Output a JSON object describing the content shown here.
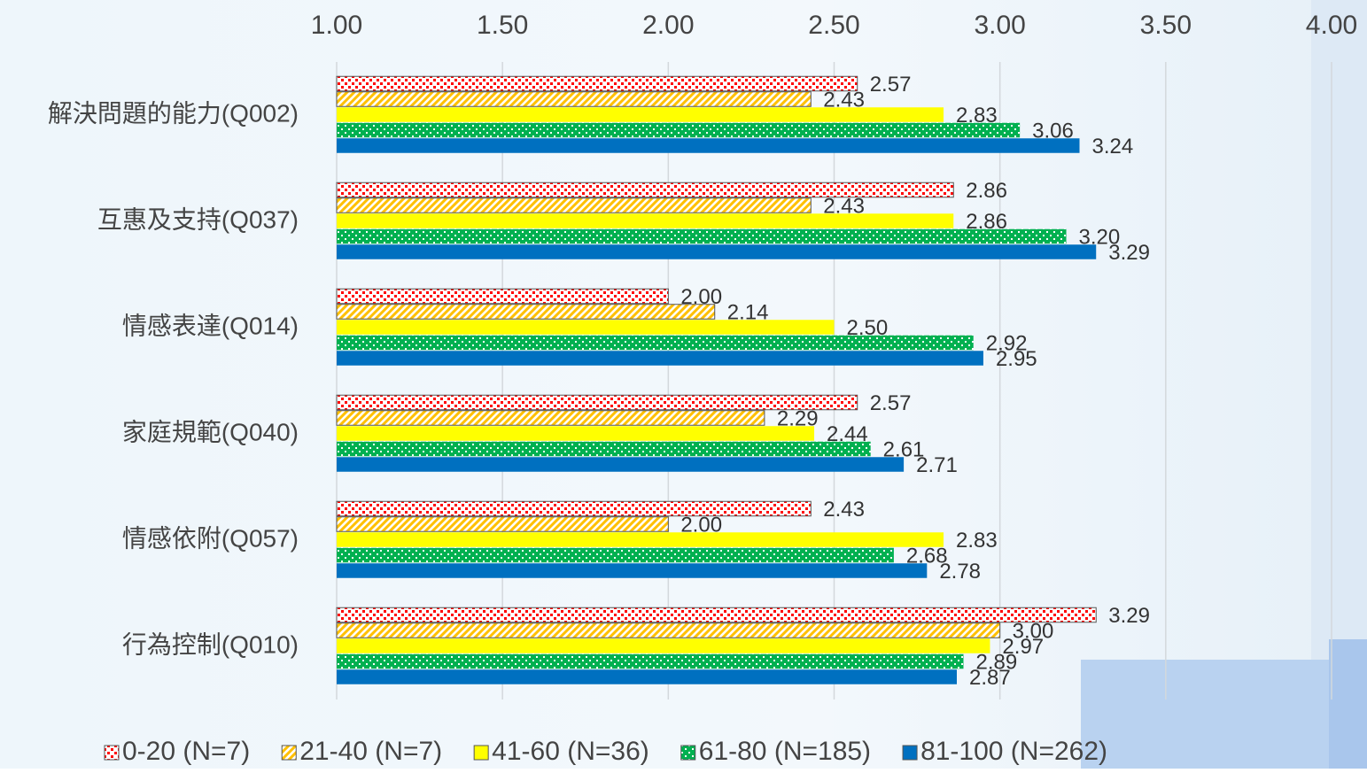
{
  "chart_data": {
    "type": "bar",
    "orientation": "horizontal",
    "categories": [
      "解決問題的能力(Q002)",
      "互惠及支持(Q037)",
      "情感表達(Q014)",
      "家庭規範(Q040)",
      "情感依附(Q057)",
      "行為控制(Q010)"
    ],
    "series": [
      {
        "name": "0-20 (N=7)",
        "color": "#ff0000",
        "values": [
          2.57,
          2.86,
          2.0,
          2.57,
          2.43,
          3.29
        ],
        "value_labels": [
          "2.57",
          "2.86",
          "2.00",
          "2.57",
          "2.43",
          "3.29"
        ]
      },
      {
        "name": "21-40 (N=7)",
        "color": "#ffc000",
        "values": [
          2.43,
          2.43,
          2.14,
          2.29,
          2.0,
          3.0
        ],
        "value_labels": [
          "2.43",
          "2.43",
          "2.14",
          "2.29",
          "2.00",
          "3.00"
        ]
      },
      {
        "name": "41-60 (N=36)",
        "color": "#ffff00",
        "values": [
          2.83,
          2.86,
          2.5,
          2.44,
          2.83,
          2.97
        ],
        "value_labels": [
          "2.83",
          "2.86",
          "2.50",
          "2.44",
          "2.83",
          "2.97"
        ]
      },
      {
        "name": "61-80 (N=185)",
        "color": "#00b050",
        "values": [
          3.06,
          3.2,
          2.92,
          2.61,
          2.68,
          2.89
        ],
        "value_labels": [
          "3.06",
          "3.20",
          "2.92",
          "2.61",
          "2.68",
          "2.89"
        ]
      },
      {
        "name": "81-100 (N=262)",
        "color": "#0070c0",
        "values": [
          3.24,
          3.29,
          2.95,
          2.71,
          2.78,
          2.87
        ],
        "value_labels": [
          "3.24",
          "3.29",
          "2.95",
          "2.71",
          "2.78",
          "2.87"
        ]
      }
    ],
    "xlim": [
      1,
      4
    ],
    "xticks": [
      {
        "value": 1,
        "label": "1.00"
      },
      {
        "value": 1.5,
        "label": "1.50"
      },
      {
        "value": 2,
        "label": "2.00"
      },
      {
        "value": 2.5,
        "label": "2.50"
      },
      {
        "value": 3,
        "label": "3.00"
      },
      {
        "value": 3.5,
        "label": "3.50"
      },
      {
        "value": 4,
        "label": "4.00"
      }
    ],
    "grid": true,
    "legend": "bottom"
  }
}
